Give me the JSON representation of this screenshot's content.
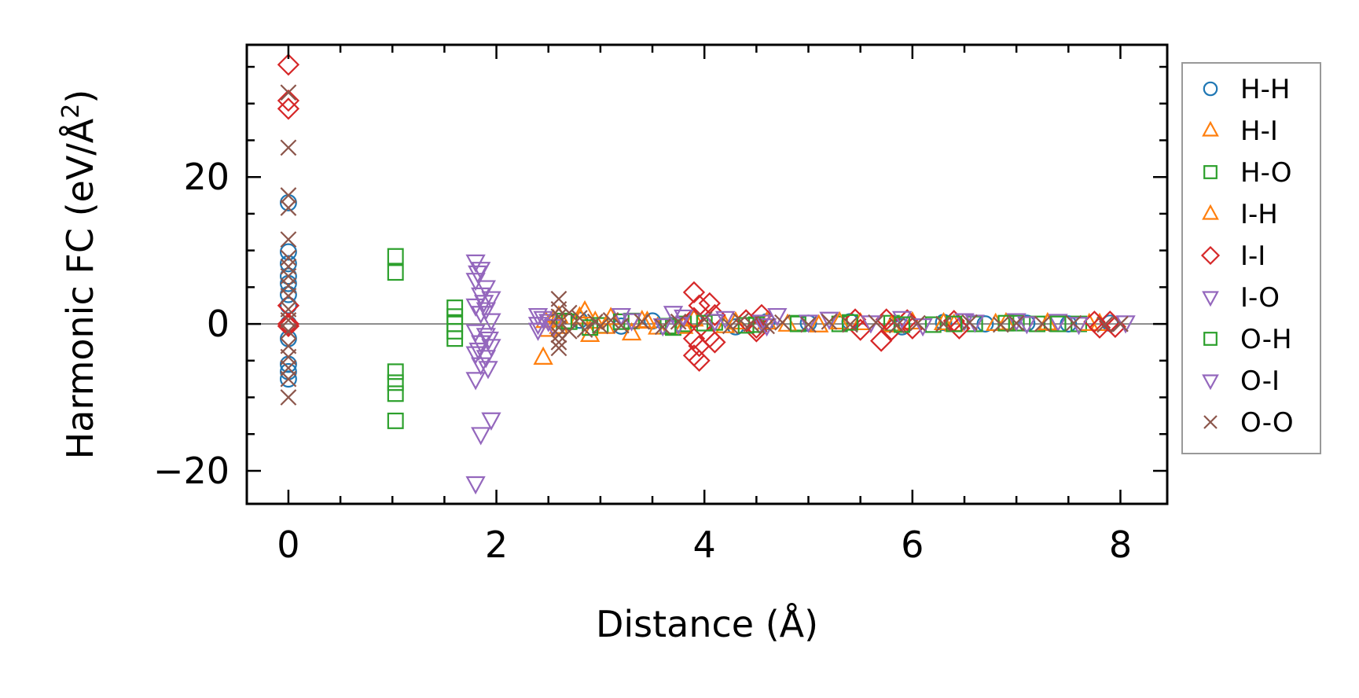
{
  "chart_data": {
    "type": "scatter",
    "xlabel": "Distance (Å)",
    "ylabel_main": "Harmonic FC (eV/Å",
    "ylabel_sup": "2",
    "ylabel_tail": ")",
    "xlim": [
      -0.4,
      8.45
    ],
    "ylim": [
      -24.5,
      38.0
    ],
    "xticks": [
      0,
      2,
      4,
      6,
      8
    ],
    "xtick_labels": [
      "0",
      "2",
      "4",
      "6",
      "8"
    ],
    "yticks": [
      -20,
      0,
      20
    ],
    "ytick_labels": [
      "−20",
      "0",
      "20"
    ],
    "zero_line": true,
    "grid": false,
    "legend_position": "outside-right",
    "series": [
      {
        "name": "H-H",
        "marker": "circle",
        "color": "#1f77b4",
        "points": [
          [
            0,
            16.5
          ],
          [
            0,
            9.8
          ],
          [
            0,
            8.2
          ],
          [
            0,
            6.5
          ],
          [
            0,
            5.5
          ],
          [
            0,
            4.0
          ],
          [
            0,
            2.5
          ],
          [
            0,
            0.0
          ],
          [
            0,
            -2.0
          ],
          [
            0,
            -5.5
          ],
          [
            0,
            -6.5
          ],
          [
            0,
            -7.5
          ],
          [
            2.8,
            0.5
          ],
          [
            3.2,
            -0.3
          ],
          [
            3.5,
            0.4
          ],
          [
            3.9,
            0.6
          ],
          [
            4.3,
            -0.4
          ],
          [
            4.6,
            0.3
          ],
          [
            5.0,
            0.1
          ],
          [
            5.4,
            0.3
          ],
          [
            5.9,
            -0.4
          ],
          [
            6.3,
            0.2
          ],
          [
            6.7,
            0.0
          ],
          [
            7.1,
            0.1
          ],
          [
            7.5,
            0.0
          ],
          [
            7.9,
            0.1
          ]
        ]
      },
      {
        "name": "H-I",
        "marker": "triangle-up",
        "color": "#ff7f0e",
        "points": [
          [
            2.45,
            -4.6
          ],
          [
            2.5,
            -0.8
          ],
          [
            2.55,
            0.5
          ],
          [
            2.6,
            1.0
          ],
          [
            2.85,
            1.7
          ],
          [
            2.9,
            -1.5
          ],
          [
            2.95,
            0.3
          ],
          [
            3.1,
            0.8
          ],
          [
            3.3,
            -1.3
          ],
          [
            3.4,
            0.4
          ],
          [
            3.55,
            -0.5
          ],
          [
            3.9,
            0.6
          ],
          [
            4.2,
            -0.3
          ],
          [
            4.6,
            0.2
          ],
          [
            5.1,
            -0.2
          ],
          [
            5.5,
            0.1
          ],
          [
            6.0,
            0.2
          ],
          [
            6.4,
            -0.1
          ],
          [
            6.9,
            0.1
          ],
          [
            7.3,
            0.0
          ],
          [
            7.8,
            0.0
          ]
        ]
      },
      {
        "name": "H-O",
        "marker": "square",
        "color": "#2ca02c",
        "points": [
          [
            1.03,
            9.2
          ],
          [
            1.03,
            7.0
          ],
          [
            1.03,
            -6.5
          ],
          [
            1.03,
            -8.0
          ],
          [
            1.03,
            -9.5
          ],
          [
            1.03,
            -13.2
          ],
          [
            1.6,
            2.2
          ],
          [
            1.6,
            1.0
          ],
          [
            1.6,
            0.0
          ],
          [
            1.6,
            -1.0
          ],
          [
            1.6,
            -2.0
          ],
          [
            2.7,
            0.3
          ],
          [
            3.0,
            -0.2
          ],
          [
            3.3,
            0.4
          ],
          [
            3.7,
            -0.5
          ],
          [
            3.8,
            0.0
          ],
          [
            4.1,
            0.2
          ],
          [
            4.5,
            -0.1
          ],
          [
            4.9,
            0.1
          ],
          [
            5.3,
            0.0
          ],
          [
            5.8,
            0.1
          ],
          [
            6.2,
            -0.1
          ],
          [
            6.6,
            0.0
          ],
          [
            7.0,
            0.1
          ],
          [
            7.2,
            0.0
          ],
          [
            7.6,
            0.0
          ]
        ]
      },
      {
        "name": "I-H",
        "marker": "triangle-up",
        "color": "#ff7f0e",
        "points": [
          [
            2.47,
            0.4
          ],
          [
            2.6,
            -0.4
          ],
          [
            2.8,
            0.9
          ],
          [
            3.05,
            -0.4
          ],
          [
            3.45,
            0.3
          ],
          [
            3.8,
            -0.4
          ],
          [
            4.3,
            0.2
          ],
          [
            4.8,
            -0.1
          ],
          [
            5.3,
            0.2
          ],
          [
            5.8,
            -0.2
          ],
          [
            6.3,
            0.1
          ],
          [
            6.8,
            0.0
          ],
          [
            7.3,
            0.1
          ],
          [
            7.7,
            0.0
          ]
        ]
      },
      {
        "name": "I-I",
        "marker": "diamond",
        "color": "#d62728",
        "points": [
          [
            0,
            35.3
          ],
          [
            0,
            30.4
          ],
          [
            0,
            29.3
          ],
          [
            0,
            2.5
          ],
          [
            0,
            0.0
          ],
          [
            0,
            -0.3
          ],
          [
            3.9,
            4.3
          ],
          [
            3.95,
            2.5
          ],
          [
            3.9,
            0.8
          ],
          [
            3.9,
            -2.0
          ],
          [
            3.95,
            -3.0
          ],
          [
            3.9,
            -4.3
          ],
          [
            3.95,
            -5.0
          ],
          [
            4.05,
            2.8
          ],
          [
            4.1,
            1.2
          ],
          [
            4.05,
            -1.8
          ],
          [
            4.1,
            -2.5
          ],
          [
            4.4,
            0.5
          ],
          [
            4.5,
            -0.5
          ],
          [
            4.55,
            1.2
          ],
          [
            4.5,
            -1.0
          ],
          [
            5.45,
            0.6
          ],
          [
            5.5,
            -0.8
          ],
          [
            5.7,
            -2.3
          ],
          [
            5.75,
            0.6
          ],
          [
            5.8,
            -0.8
          ],
          [
            5.95,
            0.5
          ],
          [
            6.0,
            -0.6
          ],
          [
            6.4,
            0.4
          ],
          [
            6.45,
            -0.6
          ],
          [
            7.75,
            0.3
          ],
          [
            7.8,
            -0.5
          ],
          [
            7.9,
            0.3
          ],
          [
            7.95,
            -0.4
          ]
        ]
      },
      {
        "name": "I-O",
        "marker": "triangle-down",
        "color": "#9467bd",
        "points": [
          [
            1.8,
            8.5
          ],
          [
            1.85,
            7.5
          ],
          [
            1.8,
            6.0
          ],
          [
            1.9,
            5.0
          ],
          [
            1.85,
            4.0
          ],
          [
            1.95,
            3.5
          ],
          [
            1.8,
            2.5
          ],
          [
            1.9,
            2.0
          ],
          [
            1.85,
            1.5
          ],
          [
            1.95,
            0.5
          ],
          [
            1.8,
            -1.0
          ],
          [
            1.9,
            -1.5
          ],
          [
            1.85,
            -2.5
          ],
          [
            1.95,
            -3.0
          ],
          [
            1.8,
            -4.0
          ],
          [
            1.9,
            -4.5
          ],
          [
            1.85,
            -5.5
          ],
          [
            1.8,
            -7.5
          ],
          [
            1.85,
            -15.0
          ],
          [
            1.95,
            -13.0
          ],
          [
            1.8,
            -21.7
          ],
          [
            2.4,
            1.2
          ],
          [
            2.4,
            0.0
          ],
          [
            2.4,
            -0.8
          ],
          [
            2.5,
            0.4
          ],
          [
            3.2,
            1.2
          ],
          [
            3.7,
            1.5
          ],
          [
            3.75,
            0.0
          ],
          [
            4.2,
            0.8
          ],
          [
            4.55,
            0.3
          ],
          [
            4.7,
            1.2
          ],
          [
            5.2,
            0.7
          ],
          [
            5.9,
            0.8
          ],
          [
            6.5,
            0.5
          ],
          [
            7.0,
            0.5
          ],
          [
            7.4,
            0.4
          ],
          [
            8.05,
            0.2
          ]
        ]
      },
      {
        "name": "O-H",
        "marker": "square",
        "color": "#2ca02c",
        "points": [
          [
            2.65,
            0.4
          ],
          [
            2.9,
            -0.5
          ],
          [
            3.2,
            0.3
          ],
          [
            3.65,
            -0.3
          ],
          [
            4.0,
            0.1
          ],
          [
            4.4,
            -0.2
          ],
          [
            4.9,
            0.0
          ],
          [
            5.4,
            0.2
          ],
          [
            5.9,
            -0.1
          ],
          [
            6.4,
            0.0
          ],
          [
            6.9,
            0.1
          ],
          [
            7.4,
            0.0
          ]
        ]
      },
      {
        "name": "O-I",
        "marker": "triangle-down",
        "color": "#9467bd",
        "points": [
          [
            1.82,
            7.0
          ],
          [
            1.88,
            3.0
          ],
          [
            1.93,
            -2.0
          ],
          [
            1.83,
            -3.5
          ],
          [
            1.92,
            -6.0
          ],
          [
            2.45,
            0.8
          ],
          [
            2.55,
            -0.3
          ],
          [
            3.3,
            0.5
          ],
          [
            3.6,
            -0.2
          ],
          [
            3.8,
            1.0
          ],
          [
            4.1,
            0.4
          ],
          [
            4.6,
            -0.2
          ],
          [
            5.0,
            0.3
          ],
          [
            5.6,
            0.2
          ],
          [
            6.1,
            -0.2
          ],
          [
            6.6,
            0.3
          ],
          [
            7.1,
            0.1
          ],
          [
            7.6,
            0.0
          ]
        ]
      },
      {
        "name": "O-O",
        "marker": "x",
        "color": "#8c564b",
        "points": [
          [
            0,
            31.5
          ],
          [
            0,
            24.0
          ],
          [
            0,
            17.5
          ],
          [
            0,
            15.8
          ],
          [
            0,
            11.5
          ],
          [
            0,
            9.0
          ],
          [
            0,
            7.8
          ],
          [
            0,
            6.5
          ],
          [
            0,
            5.2
          ],
          [
            0,
            3.8
          ],
          [
            0,
            2.0
          ],
          [
            0,
            0.5
          ],
          [
            0,
            -1.0
          ],
          [
            0,
            -3.0
          ],
          [
            0,
            -4.5
          ],
          [
            0,
            -6.0
          ],
          [
            0,
            -7.5
          ],
          [
            0,
            -10.0
          ],
          [
            2.6,
            3.4
          ],
          [
            2.6,
            2.0
          ],
          [
            2.6,
            1.0
          ],
          [
            2.6,
            -0.5
          ],
          [
            2.6,
            -1.5
          ],
          [
            2.6,
            -2.5
          ],
          [
            2.6,
            -3.3
          ],
          [
            2.7,
            1.5
          ],
          [
            2.7,
            -1.0
          ],
          [
            2.8,
            0.8
          ],
          [
            2.85,
            -0.8
          ],
          [
            2.95,
            0.3
          ],
          [
            3.0,
            -0.3
          ],
          [
            3.1,
            0.5
          ],
          [
            3.2,
            -0.2
          ],
          [
            3.4,
            0.3
          ],
          [
            3.6,
            -0.4
          ],
          [
            3.75,
            0.3
          ],
          [
            4.0,
            0.6
          ],
          [
            4.25,
            -0.3
          ],
          [
            4.35,
            0.4
          ],
          [
            4.45,
            0.0
          ],
          [
            4.6,
            -0.3
          ],
          [
            4.75,
            0.2
          ],
          [
            5.0,
            -0.1
          ],
          [
            5.2,
            0.3
          ],
          [
            5.4,
            -0.1
          ],
          [
            5.65,
            0.2
          ],
          [
            5.85,
            -0.2
          ],
          [
            6.05,
            0.1
          ],
          [
            6.3,
            0.0
          ],
          [
            6.55,
            0.2
          ],
          [
            6.85,
            -0.1
          ],
          [
            7.0,
            0.1
          ],
          [
            7.25,
            0.0
          ],
          [
            7.55,
            0.1
          ],
          [
            7.85,
            -0.1
          ],
          [
            8.0,
            0.0
          ]
        ]
      }
    ]
  }
}
